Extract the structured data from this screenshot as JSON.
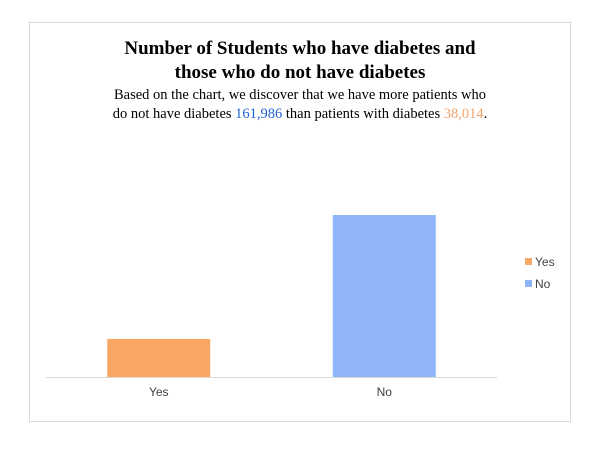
{
  "chart_data": {
    "type": "bar",
    "title_line1": "Number of Students who have diabetes and",
    "title_line2": "those who do not have diabetes",
    "subtitle": {
      "line1": "Based on the chart, we discover that we have more patients who",
      "line2_pre": "do not have diabetes ",
      "no_value_text": "161,986",
      "line2_mid": " than patients with diabetes ",
      "yes_value_text": "38,014",
      "line2_end": "."
    },
    "categories": [
      "Yes",
      "No"
    ],
    "values": [
      38014,
      161986
    ],
    "colors": [
      "#f9a764",
      "#8fb4f7"
    ],
    "ylim": [
      0,
      200000
    ],
    "legend": [
      "Yes",
      "No"
    ],
    "legend_position": "right",
    "grid": false
  }
}
